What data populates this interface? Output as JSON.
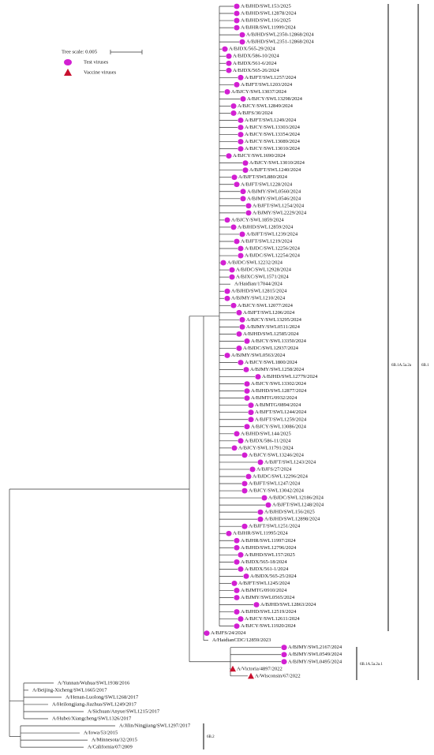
{
  "legend": {
    "tree_scale": "Tree scale: 0.005",
    "test": "Test viruses",
    "vaccine": "Vaccine viruses"
  },
  "clades": [
    "6B.1A.5a.2a",
    "6B.1",
    "6B.1A.5a.2a.1",
    "6B.2"
  ],
  "leaves": [
    {
      "label": "A/BJHD/SWL153/2025",
      "marker": "test"
    },
    {
      "label": "A/BJHD/SWL12878/2024",
      "marker": "test"
    },
    {
      "label": "A/BJHD/SWL116/2025",
      "marker": "test"
    },
    {
      "label": "A/BJHR/SWL11999/2024",
      "marker": "test"
    },
    {
      "label": "A/BJHD/SWL2350-12868/2024",
      "marker": "test"
    },
    {
      "label": "A/BJHD/SWL2351-12868/2024",
      "marker": "test"
    },
    {
      "label": "A/BJDX/565-29/2024",
      "marker": "test"
    },
    {
      "label": "A/BJDX/586-10/2024",
      "marker": "test"
    },
    {
      "label": "A/BJDX/561-6/2024",
      "marker": "test"
    },
    {
      "label": "A/BJDX/565-26/2024",
      "marker": "test"
    },
    {
      "label": "A/BJFT/SWL1257/2024",
      "marker": "test"
    },
    {
      "label": "A/BJFT/SWL1203/2024",
      "marker": "test"
    },
    {
      "label": "A/BJCY/SWL13037/2024",
      "marker": "test"
    },
    {
      "label": "A/BJCY/SWL13298/2024",
      "marker": "test"
    },
    {
      "label": "A/BJCY/SWL12849/2024",
      "marker": "test"
    },
    {
      "label": "A/BJFS/30/2024",
      "marker": "test"
    },
    {
      "label": "A/BJFT/SWL1249/2024",
      "marker": "test"
    },
    {
      "label": "A/BJCY/SWL13303/2024",
      "marker": "test"
    },
    {
      "label": "A/BJCY/SWL13354/2024",
      "marker": "test"
    },
    {
      "label": "A/BJCY/SWL13089/2024",
      "marker": "test"
    },
    {
      "label": "A/BJCY/SWL13010/2024",
      "marker": "test"
    },
    {
      "label": "A/BJCY/SWL1690/2024",
      "marker": "test"
    },
    {
      "label": "A/BJCY/SWL13010/2024",
      "marker": "test"
    },
    {
      "label": "A/BJFT/SWL1240/2024",
      "marker": "test"
    },
    {
      "label": "A/BJFT/SWL880/2024",
      "marker": "test"
    },
    {
      "label": "A/BJFT/SWL1228/2024",
      "marker": "test"
    },
    {
      "label": "A/BJMY/SWL0560/2024",
      "marker": "test"
    },
    {
      "label": "A/BJMY/SWL0546/2024",
      "marker": "test"
    },
    {
      "label": "A/BJFT/SWL1254/2024",
      "marker": "test"
    },
    {
      "label": "A/BJMY/SWL2229/2024",
      "marker": "test"
    },
    {
      "label": "A/BJCY/SWL1859/2024",
      "marker": "test"
    },
    {
      "label": "A/BJHD/SWL12859/2024",
      "marker": "test"
    },
    {
      "label": "A/BJFT/SWL1239/2024",
      "marker": "test"
    },
    {
      "label": "A/BJFT/SWL1219/2024",
      "marker": "test"
    },
    {
      "label": "A/BJDC/SWL12256/2024",
      "marker": "test"
    },
    {
      "label": "A/BJDC/SWL12254/2024",
      "marker": "test"
    },
    {
      "label": "A/BJDC/SWL12232/2024",
      "marker": "test"
    },
    {
      "label": "A/BJDC/SWL12928/2024",
      "marker": "test"
    },
    {
      "label": "A/BJXC/SWL1571/2024",
      "marker": "test"
    },
    {
      "label": "A/Haidian/17044/2024",
      "marker": "none"
    },
    {
      "label": "A/BJHD/SWL12815/2024",
      "marker": "test"
    },
    {
      "label": "A/BJMY/SWL1210/2024",
      "marker": "test"
    },
    {
      "label": "A/BJCY/SWL12077/2024",
      "marker": "test"
    },
    {
      "label": "A/BJFT/SWL1206/2024",
      "marker": "test"
    },
    {
      "label": "A/BJCY/SWL13295/2024",
      "marker": "test"
    },
    {
      "label": "A/BJMY/SWL0511/2024",
      "marker": "test"
    },
    {
      "label": "A/BJHD/SWL12585/2024",
      "marker": "test"
    },
    {
      "label": "A/BJCY/SWL13350/2024",
      "marker": "test"
    },
    {
      "label": "A/BJDC/SWL12937/2024",
      "marker": "test"
    },
    {
      "label": "A/BJMY/SWL0563/2024",
      "marker": "test"
    },
    {
      "label": "A/BJCY/SWL1800/2024",
      "marker": "test"
    },
    {
      "label": "A/BJMY/SWL1258/2024",
      "marker": "test"
    },
    {
      "label": "A/BJHD/SWL12779/2024",
      "marker": "test"
    },
    {
      "label": "A/BJCY/SWL13302/2024",
      "marker": "test"
    },
    {
      "label": "A/BJHD/SWL12877/2024",
      "marker": "test"
    },
    {
      "label": "A/BJMTG/0932/2024",
      "marker": "test"
    },
    {
      "label": "A/BJMTG/0894/2024",
      "marker": "test"
    },
    {
      "label": "A/BJFT/SWL1244/2024",
      "marker": "test"
    },
    {
      "label": "A/BJFT/SWL1259/2024",
      "marker": "test"
    },
    {
      "label": "A/BJCY/SWL13086/2024",
      "marker": "test"
    },
    {
      "label": "A/BJHD/SWL144/2025",
      "marker": "test"
    },
    {
      "label": "A/BJDX/586-11/2024",
      "marker": "test"
    },
    {
      "label": "A/BJCY/SWL11791/2024",
      "marker": "test"
    },
    {
      "label": "A/BJCY/SWL13246/2024",
      "marker": "test"
    },
    {
      "label": "A/BJFT/SWL1243/2024",
      "marker": "test"
    },
    {
      "label": "A/BJFS/27/2024",
      "marker": "test"
    },
    {
      "label": "A/BJDC/SWL12296/2024",
      "marker": "test"
    },
    {
      "label": "A/BJFT/SWL1247/2024",
      "marker": "test"
    },
    {
      "label": "A/BJCY/SWL13042/2024",
      "marker": "test"
    },
    {
      "label": "A/BJDC/SWL12186/2024",
      "marker": "test"
    },
    {
      "label": "A/BJFT/SWL1248/2024",
      "marker": "test"
    },
    {
      "label": "A/BJHD/SWL156/2025",
      "marker": "test"
    },
    {
      "label": "A/BJHD/SWL12898/2024",
      "marker": "test"
    },
    {
      "label": "A/BJFT/SWL1251/2024",
      "marker": "test"
    },
    {
      "label": "A/BJHR/SWL11995/2024",
      "marker": "test"
    },
    {
      "label": "A/BJHR/SWL11997/2024",
      "marker": "test"
    },
    {
      "label": "A/BJHD/SWL12796/2024",
      "marker": "test"
    },
    {
      "label": "A/BJHD/SWL157/2025",
      "marker": "test"
    },
    {
      "label": "A/BJDX/565-18/2024",
      "marker": "test"
    },
    {
      "label": "A/BJDX/561-1/2024",
      "marker": "test"
    },
    {
      "label": "A/BJDX/565-25/2024",
      "marker": "test"
    },
    {
      "label": "A/BJFT/SWL1245/2024",
      "marker": "test"
    },
    {
      "label": "A/BJMTG/0910/2024",
      "marker": "test"
    },
    {
      "label": "A/BJMY/SWL0565/2024",
      "marker": "test"
    },
    {
      "label": "A/BJHD/SWL12863/2024",
      "marker": "test"
    },
    {
      "label": "A/BJHD/SWL12519/2024",
      "marker": "test"
    },
    {
      "label": "A/BJCY/SWL12611/2024",
      "marker": "test"
    },
    {
      "label": "A/BJCY/SWL11920/2024",
      "marker": "test"
    },
    {
      "label": "A/BJFS/24/2024",
      "marker": "test"
    },
    {
      "label": "A/HaidianCDC/12859/2023",
      "marker": "none"
    },
    {
      "label": "A/BJMY/SWL2167/2024",
      "marker": "test"
    },
    {
      "label": "A/BJMY/SWL0549/2024",
      "marker": "test"
    },
    {
      "label": "A/BJMY/SWL0495/2024",
      "marker": "test"
    },
    {
      "label": "A/Victoria/4897/2022",
      "marker": "vaccine"
    },
    {
      "label": "A/Wisconsin/67/2022",
      "marker": "vaccine"
    },
    {
      "label": "A/Yunnan/Wuhua/SWL1938/2016",
      "marker": "none"
    },
    {
      "label": "A/Beijing-Xicheng/SWL1665/2017",
      "marker": "none"
    },
    {
      "label": "A/Henan-Luolong/SWL1268/2017",
      "marker": "none"
    },
    {
      "label": "A/Heilongjiang-Jiazhua/SWL1249/2017",
      "marker": "none"
    },
    {
      "label": "A/Sichuan/Anyue/SWL1215/2017",
      "marker": "none"
    },
    {
      "label": "A/Hubei/Xiangcheng/SWL1326/2017",
      "marker": "none"
    },
    {
      "label": "A/Jilin/Ningjiang/SWL1297/2017",
      "marker": "none"
    },
    {
      "label": "A/Iowa/53/2015",
      "marker": "none"
    },
    {
      "label": "A/Minnesota/32/2015",
      "marker": "none"
    },
    {
      "label": "A/California/07/2009",
      "marker": "none"
    }
  ]
}
